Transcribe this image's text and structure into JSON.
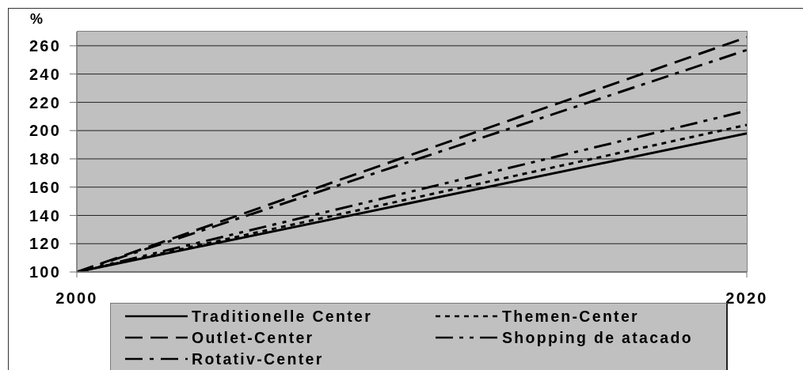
{
  "chart_data": {
    "type": "line",
    "ylabel": "%",
    "x": [
      2000,
      2020
    ],
    "xlim": [
      2000,
      2020
    ],
    "xticks": [
      2000,
      2020
    ],
    "ylim": [
      100,
      270
    ],
    "yticks": [
      100,
      120,
      140,
      160,
      180,
      200,
      220,
      240,
      260
    ],
    "grid": "y",
    "legend": "bottom",
    "series": [
      {
        "name": "Traditionelle Center",
        "color": "#000000",
        "line_style": "solid",
        "values": [
          100,
          198
        ]
      },
      {
        "name": "Themen-Center",
        "color": "#000000",
        "line_style": "dotted",
        "values": [
          100,
          204
        ]
      },
      {
        "name": "Outlet-Center",
        "color": "#000000",
        "line_style": "dashed",
        "values": [
          100,
          266
        ]
      },
      {
        "name": "Shopping de atacado",
        "color": "#000000",
        "line_style": "dashdotdot",
        "values": [
          100,
          214
        ]
      },
      {
        "name": "Rotativ-Center",
        "color": "#000000",
        "line_style": "dashdot",
        "values": [
          100,
          257
        ]
      }
    ]
  }
}
